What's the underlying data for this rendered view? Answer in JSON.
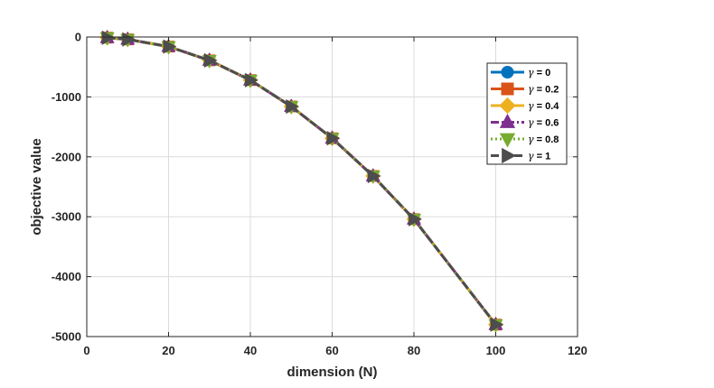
{
  "chart_data": {
    "type": "line",
    "title": "",
    "xlabel": "dimension (N)",
    "ylabel": "objective value",
    "xlim": [
      0,
      120
    ],
    "ylim": [
      -5000,
      0
    ],
    "xticks": [
      0,
      20,
      40,
      60,
      80,
      100,
      120
    ],
    "yticks": [
      0,
      -1000,
      -2000,
      -3000,
      -4000,
      -5000
    ],
    "xtick_labels": [
      "0",
      "20",
      "40",
      "60",
      "80",
      "100",
      "120"
    ],
    "ytick_labels": [
      "0",
      "-1000",
      "-2000",
      "-3000",
      "-4000",
      "-5000"
    ],
    "grid": true,
    "legend_position": "top-right",
    "x": [
      5,
      10,
      20,
      30,
      40,
      50,
      60,
      70,
      80,
      100
    ],
    "series": [
      {
        "name": "γ = 0",
        "legend_symbol": "γ",
        "legend_text": " = 0",
        "color": "#0072BD",
        "marker": "circle",
        "dash": "solid",
        "values": [
          -12,
          -40,
          -160,
          -390,
          -720,
          -1160,
          -1690,
          -2320,
          -3040,
          -4800
        ]
      },
      {
        "name": "γ = 0.2",
        "legend_symbol": "γ",
        "legend_text": " = 0.2",
        "color": "#D95319",
        "marker": "square",
        "dash": "solid",
        "values": [
          -12,
          -40,
          -160,
          -390,
          -720,
          -1160,
          -1690,
          -2320,
          -3040,
          -4800
        ]
      },
      {
        "name": "γ = 0.4",
        "legend_symbol": "γ",
        "legend_text": " = 0.4",
        "color": "#EDB120",
        "marker": "diamond",
        "dash": "solid",
        "values": [
          -12,
          -40,
          -160,
          -390,
          -720,
          -1160,
          -1690,
          -2320,
          -3040,
          -4800
        ]
      },
      {
        "name": "γ = 0.6",
        "legend_symbol": "γ",
        "legend_text": " = 0.6",
        "color": "#7E2F8E",
        "marker": "triangle-up",
        "dash": "dashdot",
        "values": [
          -12,
          -40,
          -160,
          -390,
          -720,
          -1160,
          -1690,
          -2320,
          -3040,
          -4800
        ]
      },
      {
        "name": "γ = 0.8",
        "legend_symbol": "γ",
        "legend_text": " = 0.8",
        "color": "#77AC30",
        "marker": "triangle-down",
        "dash": "dotted",
        "values": [
          -12,
          -40,
          -160,
          -390,
          -720,
          -1160,
          -1690,
          -2320,
          -3040,
          -4800
        ]
      },
      {
        "name": "γ = 1",
        "legend_symbol": "γ",
        "legend_text": " = 1",
        "color": "#4D4D4D",
        "marker": "triangle-right",
        "dash": "dashed",
        "values": [
          -12,
          -40,
          -160,
          -390,
          -720,
          -1160,
          -1690,
          -2320,
          -3040,
          -4800
        ]
      }
    ]
  }
}
